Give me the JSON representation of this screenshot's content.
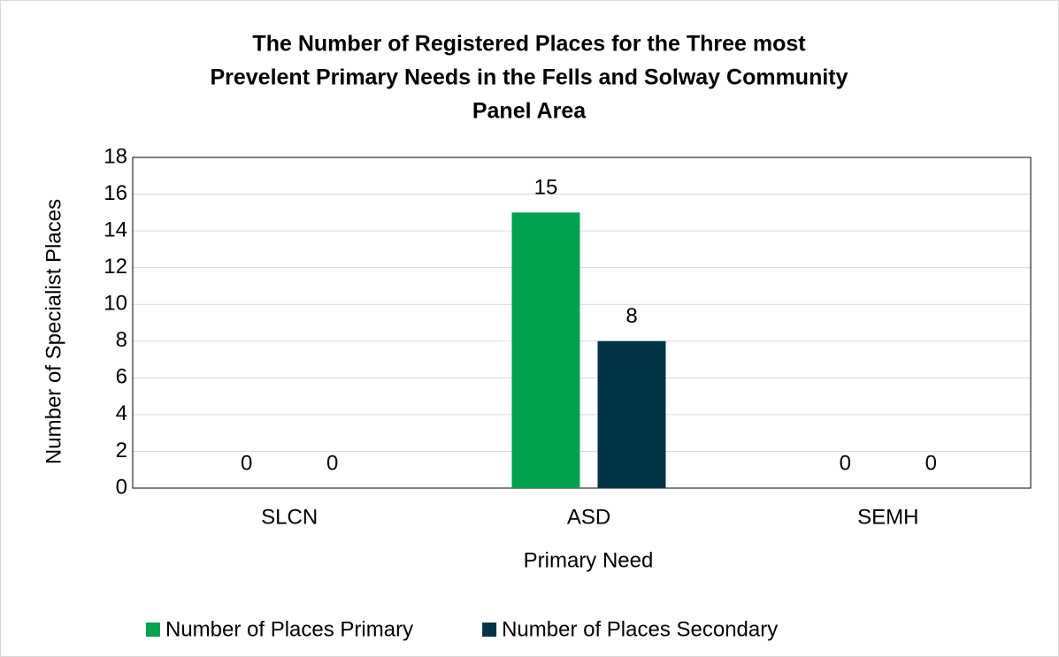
{
  "chart_data": {
    "type": "bar",
    "title_lines": [
      "The Number of Registered Places for the Three most",
      "Prevelent Primary Needs in the Fells and Solway Community",
      "Panel Area"
    ],
    "x_label": "Primary Need",
    "y_label": "Number of Specialist Places",
    "categories": [
      "SLCN",
      "ASD",
      "SEMH"
    ],
    "series": [
      {
        "name": "Number of Places Primary",
        "color": "#00a14f",
        "values": [
          0,
          15,
          0
        ]
      },
      {
        "name": "Number of Places Secondary",
        "color": "#003446",
        "values": [
          0,
          8,
          0
        ]
      }
    ],
    "ylim": [
      0,
      18
    ],
    "yticks": [
      0,
      2,
      4,
      6,
      8,
      10,
      12,
      14,
      16,
      18
    ],
    "grid": true,
    "data_labels": true,
    "legend": "bottom"
  }
}
